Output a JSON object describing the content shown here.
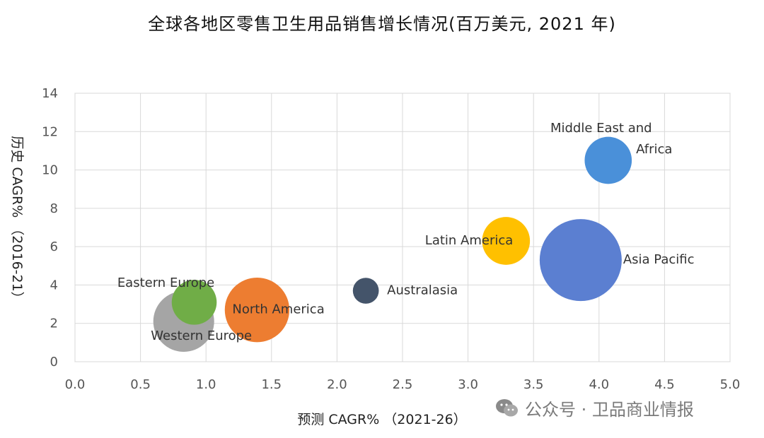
{
  "title": "全球各地区零售卫生用品销售增长情况(百万美元, 2021 年)",
  "watermark": {
    "text": "公众号 · 卫品商业情报",
    "icon": "wechat-icon"
  },
  "chart_data": {
    "type": "scatter",
    "xlabel": "预测 CAGR% （2021-26）",
    "ylabel": "历史 CAGR% （2016-21）",
    "xlim": [
      0,
      5
    ],
    "ylim": [
      0,
      14
    ],
    "xticks": [
      "0.0",
      "0.5",
      "1.0",
      "1.5",
      "2.0",
      "2.5",
      "3.0",
      "3.5",
      "4.0",
      "4.5",
      "5.0"
    ],
    "yticks": [
      "0",
      "2",
      "4",
      "6",
      "8",
      "10",
      "12",
      "14"
    ],
    "grid": true,
    "points": [
      {
        "label": "Middle East and\nAfrica",
        "x": 4.07,
        "y": 10.5,
        "size": 0.33,
        "color": "#4a90d9"
      },
      {
        "label": "Latin America",
        "x": 3.29,
        "y": 6.3,
        "size": 0.34,
        "color": "#ffc000"
      },
      {
        "label": "Asia Pacific",
        "x": 3.86,
        "y": 5.3,
        "size": 1.0,
        "color": "#5b7fd1"
      },
      {
        "label": "Australasia",
        "x": 2.22,
        "y": 3.7,
        "size": 0.1,
        "color": "#44546a"
      },
      {
        "label": "Eastern Europe",
        "x": 0.91,
        "y": 3.1,
        "size": 0.3,
        "color": "#70ad47"
      },
      {
        "label": "North America",
        "x": 1.39,
        "y": 2.7,
        "size": 0.62,
        "color": "#ed7d31"
      },
      {
        "label": "Western Europe",
        "x": 0.83,
        "y": 2.1,
        "size": 0.55,
        "color": "#a5a5a5"
      }
    ]
  }
}
